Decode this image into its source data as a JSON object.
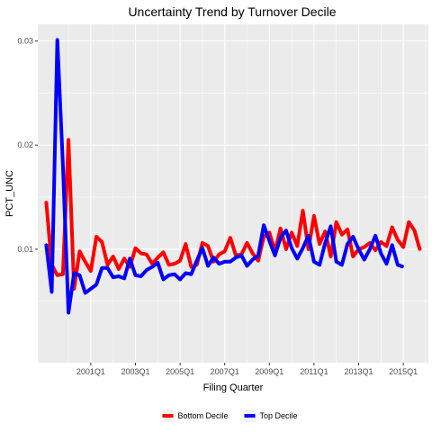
{
  "chart_data": {
    "type": "line",
    "title": "Uncertainty Trend by Turnover Decile",
    "xlabel": "Filing Quarter",
    "ylabel": "PCT_UNC",
    "x_start": "1999Q1",
    "x_tick_labels": [
      "2001Q1",
      "2003Q1",
      "2005Q1",
      "2007Q1",
      "2009Q1",
      "2011Q1",
      "2013Q1",
      "2015Q1"
    ],
    "y_ticks": [
      0.01,
      0.02,
      0.03
    ],
    "y_tick_labels": [
      "0.01",
      "0.02",
      "0.03"
    ],
    "ylim": [
      -0.0009,
      0.0316
    ],
    "grid": true,
    "legend_position": "bottom",
    "series": [
      {
        "name": "Bottom Decile",
        "color": "#ff0000",
        "values": [
          0.0146,
          0.0085,
          0.0075,
          0.0076,
          0.0205,
          0.0062,
          0.0098,
          0.0088,
          0.0079,
          0.0112,
          0.0107,
          0.0085,
          0.0093,
          0.0081,
          0.0091,
          0.0083,
          0.0101,
          0.0096,
          0.0095,
          0.0086,
          0.0092,
          0.0097,
          0.0085,
          0.0086,
          0.0089,
          0.0105,
          0.0083,
          0.0085,
          0.0106,
          0.0103,
          0.0088,
          0.0095,
          0.0098,
          0.0111,
          0.0094,
          0.0095,
          0.0106,
          0.0096,
          0.0089,
          0.0112,
          0.0116,
          0.0098,
          0.012,
          0.01,
          0.0116,
          0.0103,
          0.0137,
          0.01,
          0.0132,
          0.0105,
          0.0117,
          0.0093,
          0.0126,
          0.0114,
          0.0119,
          0.0093,
          0.01,
          0.0102,
          0.0106,
          0.0099,
          0.0107,
          0.0103,
          0.0121,
          0.0109,
          0.0102,
          0.0126,
          0.0118,
          0.0099
        ]
      },
      {
        "name": "Top Decile",
        "color": "#0000ff",
        "values": [
          0.0105,
          0.0059,
          0.0301,
          0.0181,
          0.0039,
          0.0077,
          0.0075,
          0.0058,
          0.0062,
          0.0066,
          0.0082,
          0.0082,
          0.0073,
          0.0074,
          0.0072,
          0.0091,
          0.0075,
          0.0074,
          0.008,
          0.0083,
          0.0087,
          0.0071,
          0.0075,
          0.0076,
          0.0071,
          0.0077,
          0.0076,
          0.0089,
          0.0101,
          0.0084,
          0.0092,
          0.0086,
          0.0088,
          0.0088,
          0.0092,
          0.0094,
          0.0084,
          0.009,
          0.0094,
          0.0123,
          0.0108,
          0.0094,
          0.0111,
          0.0118,
          0.0101,
          0.0091,
          0.0101,
          0.0113,
          0.0088,
          0.0085,
          0.0106,
          0.0122,
          0.0088,
          0.0085,
          0.0105,
          0.0112,
          0.01,
          0.009,
          0.01,
          0.0113,
          0.0096,
          0.0086,
          0.0104,
          0.0085,
          0.0083
        ]
      }
    ]
  }
}
